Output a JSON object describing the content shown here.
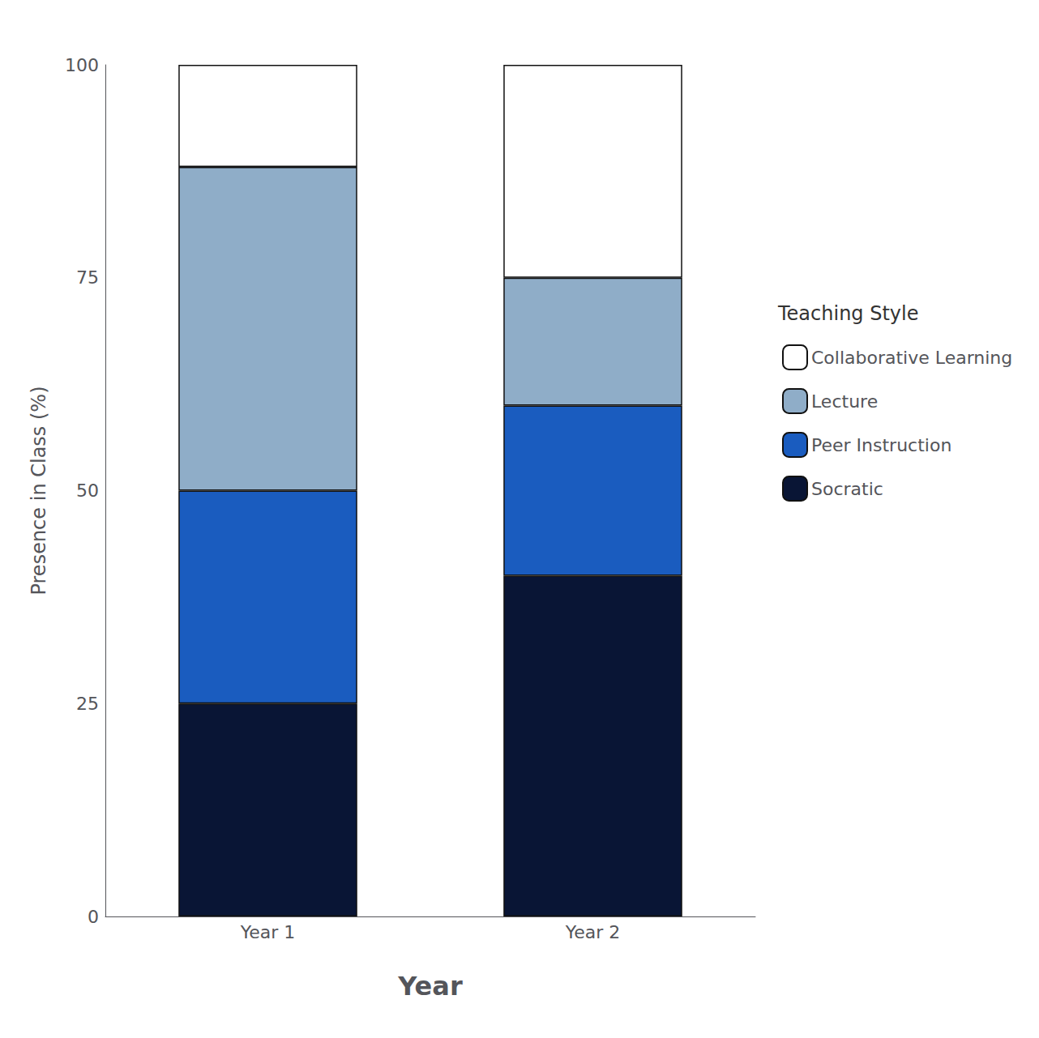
{
  "chart_data": {
    "type": "bar",
    "stacked": true,
    "categories": [
      "Year 1",
      "Year 2"
    ],
    "series": [
      {
        "name": "Socratic",
        "color": "#091535",
        "values": [
          25,
          40
        ]
      },
      {
        "name": "Peer Instruction",
        "color": "#1a5cbf",
        "values": [
          25,
          20
        ]
      },
      {
        "name": "Lecture",
        "color": "#8fadc8",
        "values": [
          38,
          15
        ]
      },
      {
        "name": "Collaborative Learning",
        "color": "#ffffff",
        "values": [
          12,
          25
        ]
      }
    ],
    "xlabel": "Year",
    "ylabel": "Presence in Class (%)",
    "legend_title": "Teaching Style",
    "legend": "right",
    "ylim": [
      0,
      100
    ],
    "yticks": [
      0,
      25,
      50,
      75,
      100
    ],
    "grid": false
  }
}
